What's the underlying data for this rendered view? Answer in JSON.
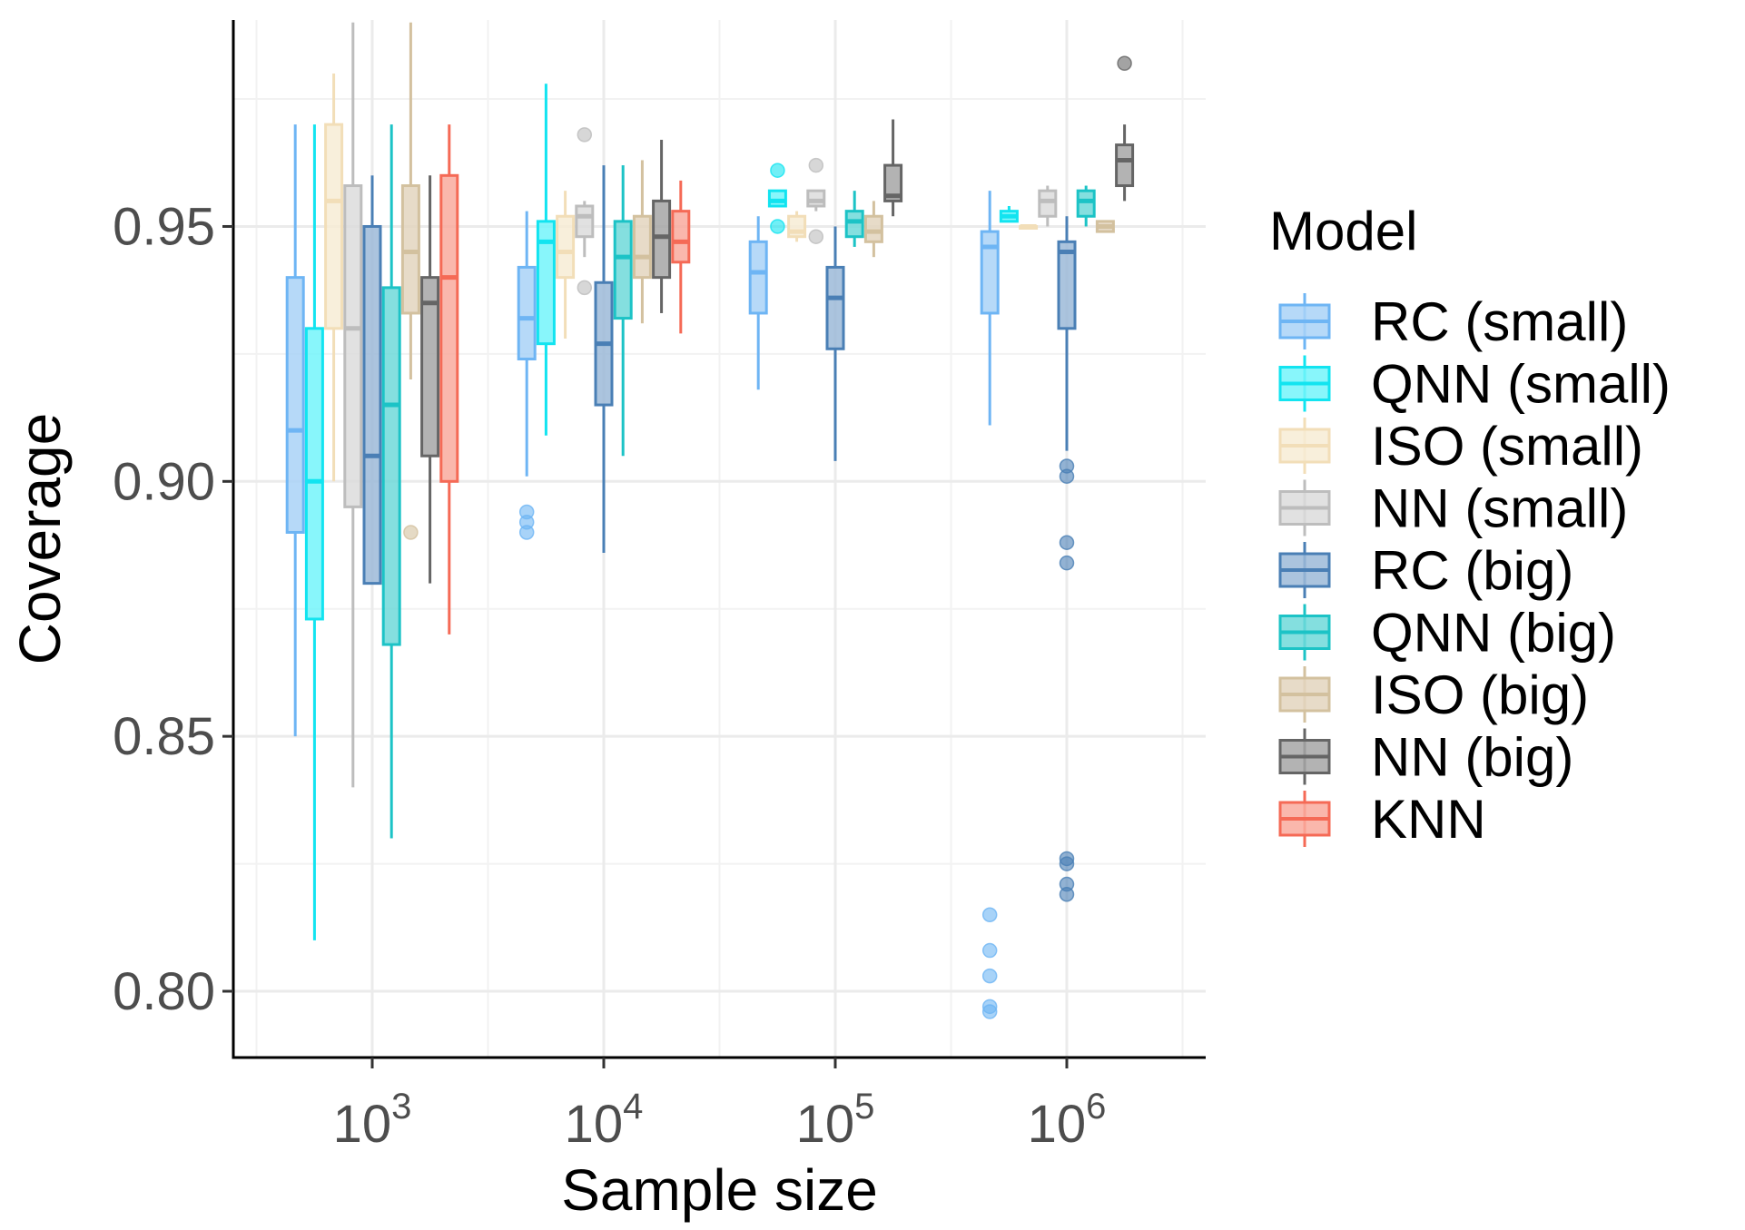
{
  "chart_data": {
    "type": "box",
    "title": "",
    "xlabel": "Sample size",
    "ylabel": "Coverage",
    "x_scale": "log10",
    "x_ticks": [
      {
        "base": "10",
        "exp": "3"
      },
      {
        "base": "10",
        "exp": "4"
      },
      {
        "base": "10",
        "exp": "5"
      },
      {
        "base": "10",
        "exp": "6"
      }
    ],
    "y_ticks": [
      "0.80",
      "0.85",
      "0.90",
      "0.95"
    ],
    "ylim": [
      0.787,
      0.9905
    ],
    "legend": {
      "title": "Model",
      "position": "right",
      "entries": [
        "RC (small)",
        "QNN (small)",
        "ISO (small)",
        "NN (small)",
        "RC (big)",
        "QNN (big)",
        "ISO (big)",
        "NN (big)",
        "KNN"
      ]
    },
    "colors": {
      "RC (small)": {
        "stroke": "#6EB5F4",
        "fill": "#A9D2F7"
      },
      "QNN (small)": {
        "stroke": "#12E4F0",
        "fill": "#73F4FA"
      },
      "ISO (small)": {
        "stroke": "#F2DEB8",
        "fill": "#F7ECD5"
      },
      "NN (small)": {
        "stroke": "#BDBDBD",
        "fill": "#DCDCDC"
      },
      "RC (big)": {
        "stroke": "#4A7FB5",
        "fill": "#9CBAD8"
      },
      "QNN (big)": {
        "stroke": "#1CC3C6",
        "fill": "#6ED9D9"
      },
      "ISO (big)": {
        "stroke": "#D3C19F",
        "fill": "#E3D5BE"
      },
      "NN (big)": {
        "stroke": "#656565",
        "fill": "#A6A6A6"
      },
      "KNN": {
        "stroke": "#F56A56",
        "fill": "#F9AA9E"
      }
    },
    "groups": [
      {
        "sample_size": "10^3",
        "boxes": [
          {
            "model": "RC (small)",
            "lower_whisker": 0.85,
            "q1": 0.89,
            "median": 0.91,
            "q3": 0.94,
            "upper_whisker": 0.97,
            "outliers": []
          },
          {
            "model": "QNN (small)",
            "lower_whisker": 0.81,
            "q1": 0.873,
            "median": 0.9,
            "q3": 0.93,
            "upper_whisker": 0.97,
            "outliers": []
          },
          {
            "model": "ISO (small)",
            "lower_whisker": 0.9,
            "q1": 0.93,
            "median": 0.955,
            "q3": 0.97,
            "upper_whisker": 0.98,
            "outliers": []
          },
          {
            "model": "NN (small)",
            "lower_whisker": 0.84,
            "q1": 0.895,
            "median": 0.93,
            "q3": 0.958,
            "upper_whisker": 0.99,
            "outliers": []
          },
          {
            "model": "RC (big)",
            "lower_whisker": 0.88,
            "q1": 0.88,
            "median": 0.905,
            "q3": 0.95,
            "upper_whisker": 0.96,
            "outliers": []
          },
          {
            "model": "QNN (big)",
            "lower_whisker": 0.83,
            "q1": 0.868,
            "median": 0.915,
            "q3": 0.938,
            "upper_whisker": 0.97,
            "outliers": []
          },
          {
            "model": "ISO (big)",
            "lower_whisker": 0.92,
            "q1": 0.933,
            "median": 0.945,
            "q3": 0.958,
            "upper_whisker": 0.99,
            "outliers": [
              0.89
            ]
          },
          {
            "model": "NN (big)",
            "lower_whisker": 0.88,
            "q1": 0.905,
            "median": 0.935,
            "q3": 0.94,
            "upper_whisker": 0.96,
            "outliers": []
          },
          {
            "model": "KNN",
            "lower_whisker": 0.87,
            "q1": 0.9,
            "median": 0.94,
            "q3": 0.96,
            "upper_whisker": 0.97,
            "outliers": []
          }
        ]
      },
      {
        "sample_size": "10^4",
        "boxes": [
          {
            "model": "RC (small)",
            "lower_whisker": 0.901,
            "q1": 0.924,
            "median": 0.932,
            "q3": 0.942,
            "upper_whisker": 0.953,
            "outliers": [
              0.894,
              0.892,
              0.89
            ]
          },
          {
            "model": "QNN (small)",
            "lower_whisker": 0.909,
            "q1": 0.927,
            "median": 0.947,
            "q3": 0.951,
            "upper_whisker": 0.978,
            "outliers": []
          },
          {
            "model": "ISO (small)",
            "lower_whisker": 0.928,
            "q1": 0.94,
            "median": 0.945,
            "q3": 0.952,
            "upper_whisker": 0.957,
            "outliers": []
          },
          {
            "model": "NN (small)",
            "lower_whisker": 0.944,
            "q1": 0.948,
            "median": 0.952,
            "q3": 0.954,
            "upper_whisker": 0.955,
            "outliers": [
              0.968,
              0.938
            ]
          },
          {
            "model": "RC (big)",
            "lower_whisker": 0.886,
            "q1": 0.915,
            "median": 0.927,
            "q3": 0.939,
            "upper_whisker": 0.962,
            "outliers": []
          },
          {
            "model": "QNN (big)",
            "lower_whisker": 0.905,
            "q1": 0.932,
            "median": 0.944,
            "q3": 0.951,
            "upper_whisker": 0.962,
            "outliers": []
          },
          {
            "model": "ISO (big)",
            "lower_whisker": 0.931,
            "q1": 0.94,
            "median": 0.944,
            "q3": 0.952,
            "upper_whisker": 0.963,
            "outliers": []
          },
          {
            "model": "NN (big)",
            "lower_whisker": 0.933,
            "q1": 0.94,
            "median": 0.948,
            "q3": 0.955,
            "upper_whisker": 0.967,
            "outliers": []
          },
          {
            "model": "KNN",
            "lower_whisker": 0.929,
            "q1": 0.943,
            "median": 0.947,
            "q3": 0.953,
            "upper_whisker": 0.959,
            "outliers": []
          }
        ]
      },
      {
        "sample_size": "10^5",
        "boxes": [
          {
            "model": "RC (small)",
            "lower_whisker": 0.918,
            "q1": 0.933,
            "median": 0.941,
            "q3": 0.947,
            "upper_whisker": 0.952,
            "outliers": []
          },
          {
            "model": "QNN (small)",
            "lower_whisker": 0.954,
            "q1": 0.954,
            "median": 0.955,
            "q3": 0.957,
            "upper_whisker": 0.957,
            "outliers": [
              0.961,
              0.95
            ]
          },
          {
            "model": "ISO (small)",
            "lower_whisker": 0.947,
            "q1": 0.948,
            "median": 0.949,
            "q3": 0.952,
            "upper_whisker": 0.953,
            "outliers": []
          },
          {
            "model": "NN (small)",
            "lower_whisker": 0.953,
            "q1": 0.954,
            "median": 0.955,
            "q3": 0.957,
            "upper_whisker": 0.957,
            "outliers": [
              0.962,
              0.948
            ]
          },
          {
            "model": "RC (big)",
            "lower_whisker": 0.904,
            "q1": 0.926,
            "median": 0.936,
            "q3": 0.942,
            "upper_whisker": 0.95,
            "outliers": []
          },
          {
            "model": "QNN (big)",
            "lower_whisker": 0.946,
            "q1": 0.948,
            "median": 0.951,
            "q3": 0.953,
            "upper_whisker": 0.957,
            "outliers": []
          },
          {
            "model": "ISO (big)",
            "lower_whisker": 0.944,
            "q1": 0.947,
            "median": 0.949,
            "q3": 0.952,
            "upper_whisker": 0.955,
            "outliers": []
          },
          {
            "model": "NN (big)",
            "lower_whisker": 0.952,
            "q1": 0.955,
            "median": 0.956,
            "q3": 0.962,
            "upper_whisker": 0.971,
            "outliers": []
          }
        ]
      },
      {
        "sample_size": "10^6",
        "boxes": [
          {
            "model": "RC (small)",
            "lower_whisker": 0.911,
            "q1": 0.933,
            "median": 0.946,
            "q3": 0.949,
            "upper_whisker": 0.957,
            "outliers": [
              0.815,
              0.808,
              0.803,
              0.797,
              0.796
            ]
          },
          {
            "model": "QNN (small)",
            "lower_whisker": 0.951,
            "q1": 0.951,
            "median": 0.952,
            "q3": 0.953,
            "upper_whisker": 0.954,
            "outliers": []
          },
          {
            "model": "ISO (small)",
            "lower_whisker": 0.95,
            "q1": 0.95,
            "median": 0.95,
            "q3": 0.95,
            "upper_whisker": 0.95,
            "outliers": []
          },
          {
            "model": "NN (small)",
            "lower_whisker": 0.95,
            "q1": 0.952,
            "median": 0.955,
            "q3": 0.957,
            "upper_whisker": 0.958,
            "outliers": []
          },
          {
            "model": "RC (big)",
            "lower_whisker": 0.906,
            "q1": 0.93,
            "median": 0.945,
            "q3": 0.947,
            "upper_whisker": 0.952,
            "outliers": [
              0.903,
              0.901,
              0.888,
              0.884,
              0.826,
              0.825,
              0.821,
              0.819
            ]
          },
          {
            "model": "QNN (big)",
            "lower_whisker": 0.95,
            "q1": 0.952,
            "median": 0.955,
            "q3": 0.957,
            "upper_whisker": 0.958,
            "outliers": []
          },
          {
            "model": "ISO (big)",
            "lower_whisker": 0.949,
            "q1": 0.949,
            "median": 0.95,
            "q3": 0.951,
            "upper_whisker": 0.951,
            "outliers": []
          },
          {
            "model": "NN (big)",
            "lower_whisker": 0.955,
            "q1": 0.958,
            "median": 0.963,
            "q3": 0.966,
            "upper_whisker": 0.97,
            "outliers": [
              0.982
            ]
          }
        ]
      }
    ]
  }
}
